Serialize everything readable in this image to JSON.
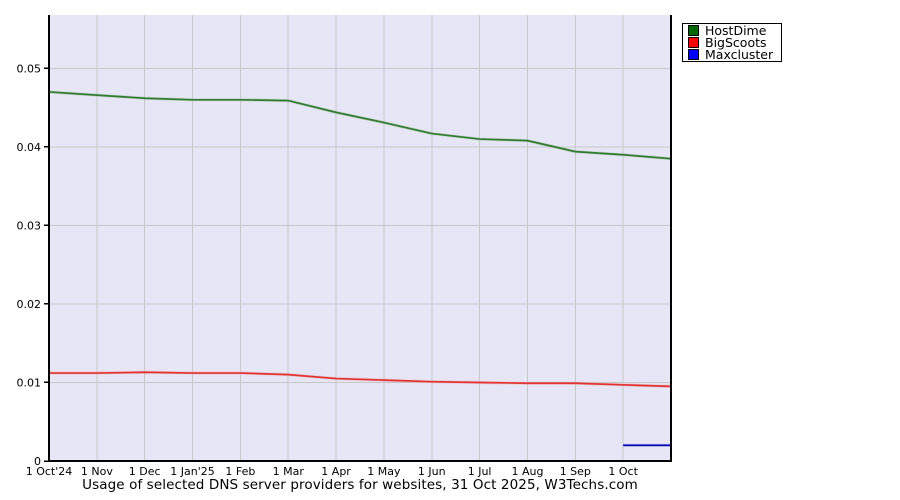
{
  "chart_data": {
    "type": "line",
    "title": "Usage of selected DNS server providers for websites, 31 Oct 2025, W3Techs.com",
    "x_tick_labels": [
      "1 Oct'24",
      "1 Nov",
      "1 Dec",
      "1 Jan'25",
      "1 Feb",
      "1 Mar",
      "1 Apr",
      "1 May",
      "1 Jun",
      "1 Jul",
      "1 Aug",
      "1 Sep",
      "1 Oct"
    ],
    "y_tick_labels": [
      "0",
      "0.01",
      "0.02",
      "0.03",
      "0.04",
      "0.05"
    ],
    "y_ticks": [
      0,
      0.01,
      0.02,
      0.03,
      0.04,
      0.05
    ],
    "ylim": [
      0,
      0.0568
    ],
    "grid": true,
    "legend_position": "top-right",
    "plot_bg": "#e6e6f6",
    "grid_color": "#c8c8c8",
    "axis_color": "#000000",
    "series": [
      {
        "name": "HostDime",
        "swatch_color": "#006600",
        "line_color": "#347a34",
        "halo_color": "#9cc79c",
        "x": [
          0,
          1,
          2,
          3,
          4,
          5,
          6,
          7,
          8,
          9,
          10,
          11,
          12,
          13
        ],
        "values": [
          0.047,
          0.0466,
          0.0462,
          0.046,
          0.046,
          0.0459,
          0.0444,
          0.0431,
          0.0417,
          0.041,
          0.0408,
          0.0394,
          0.039,
          0.0385
        ]
      },
      {
        "name": "BigScoots",
        "swatch_color": "#ff0000",
        "line_color": "#e03434",
        "halo_color": "#f2a8a8",
        "x": [
          0,
          1,
          2,
          3,
          4,
          5,
          6,
          7,
          8,
          9,
          10,
          11,
          12,
          13
        ],
        "values": [
          0.0112,
          0.0112,
          0.0113,
          0.0112,
          0.0112,
          0.011,
          0.0105,
          0.0103,
          0.0101,
          0.01,
          0.0099,
          0.0099,
          0.0097,
          0.0095
        ]
      },
      {
        "name": "Maxcluster",
        "swatch_color": "#0000ff",
        "line_color": "#0000bb",
        "halo_color": "#9999dd",
        "x": [
          12,
          13
        ],
        "values": [
          0.002,
          0.002
        ]
      }
    ]
  }
}
